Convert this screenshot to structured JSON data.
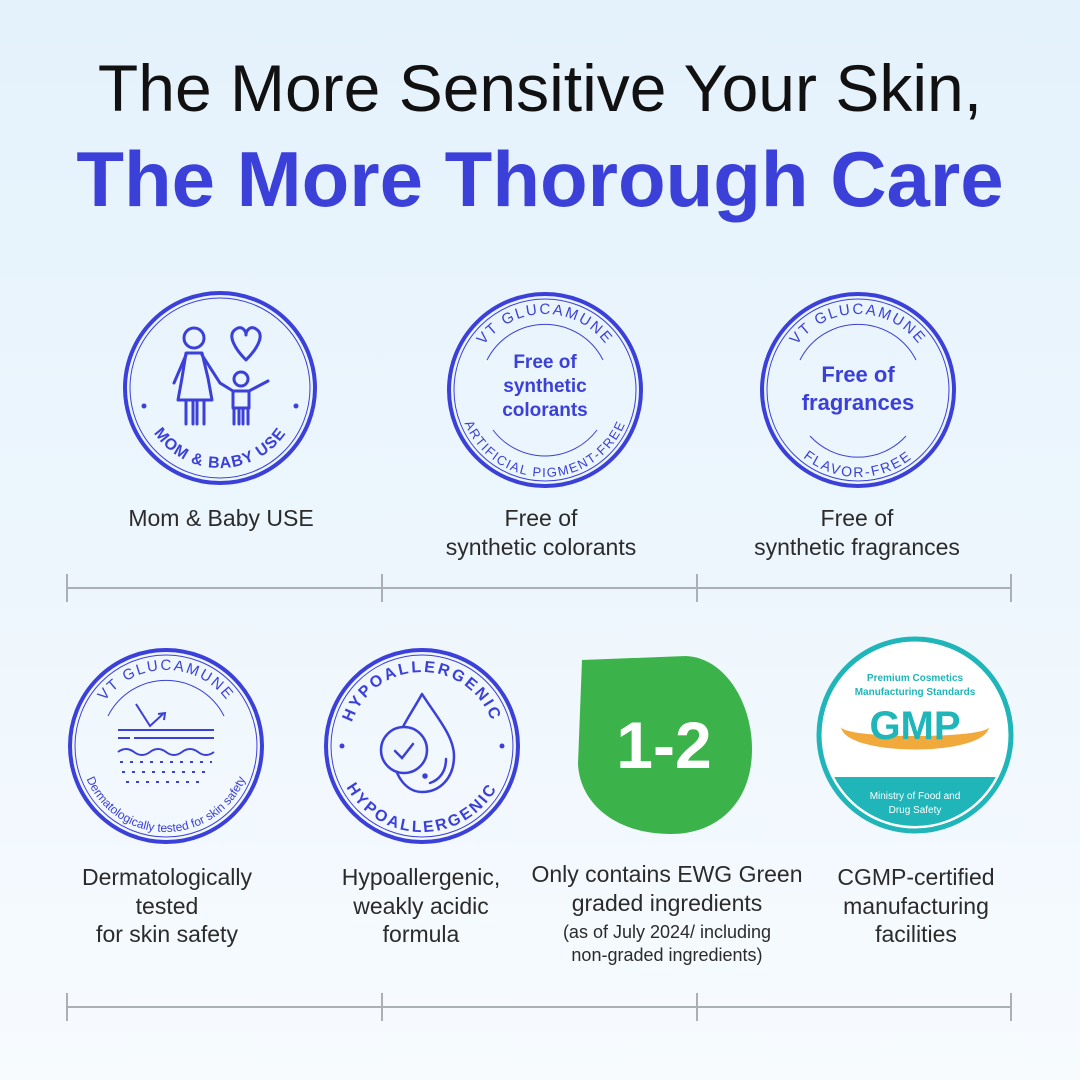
{
  "headline": {
    "line1": "The More Sensitive Your Skin,",
    "line2": "The More Thorough Care"
  },
  "colors": {
    "brand_blue": "#3b40d8",
    "ewg_green": "#3bb34a",
    "gmp_teal": "#1fb5b9",
    "gmp_orange": "#f2a93b"
  },
  "row1": [
    {
      "badge": {
        "ring_text": "MOM & BABY USE",
        "icon": "mother-child-heart-icon"
      },
      "caption": [
        "Mom & Baby USE"
      ]
    },
    {
      "badge": {
        "top_text": "VT GLUCAMUNE",
        "center": [
          "Free of",
          "synthetic",
          "colorants"
        ],
        "bottom_text": "ARTIFICIAL PIGMENT-FREE"
      },
      "caption": [
        "Free of",
        "synthetic colorants"
      ]
    },
    {
      "badge": {
        "top_text": "VT GLUCAMUNE",
        "center": [
          "Free of",
          "fragrances"
        ],
        "bottom_text": "FLAVOR-FREE"
      },
      "caption": [
        "Free of",
        "synthetic fragrances"
      ]
    }
  ],
  "row2": [
    {
      "badge": {
        "top_text": "VT GLUCAMUNE",
        "bottom_text": "Dermatologically tested for skin safety",
        "icon": "skin-layers-icon"
      },
      "caption": [
        "Dermatologically",
        "tested",
        "for skin safety"
      ]
    },
    {
      "badge": {
        "top_text": "HYPOALLERGENIC",
        "bottom_text": "HYPOALLERGENIC",
        "icon": "drop-check-icon"
      },
      "caption": [
        "Hypoallergenic,",
        "weakly acidic",
        "formula"
      ]
    },
    {
      "badge": {
        "center": "1-2"
      },
      "caption": [
        "Only contains EWG Green",
        "graded ingredients"
      ],
      "note": [
        "(as of July 2024/ including",
        "non-graded ingredients)"
      ]
    },
    {
      "badge": {
        "top": [
          "Premium Cosmetics",
          "Manufacturing Standards"
        ],
        "center": "GMP",
        "bottom": [
          "Ministry of Food and",
          "Drug Safety"
        ]
      },
      "caption": [
        "CGMP-certified",
        "manufacturing",
        "facilities"
      ]
    }
  ]
}
